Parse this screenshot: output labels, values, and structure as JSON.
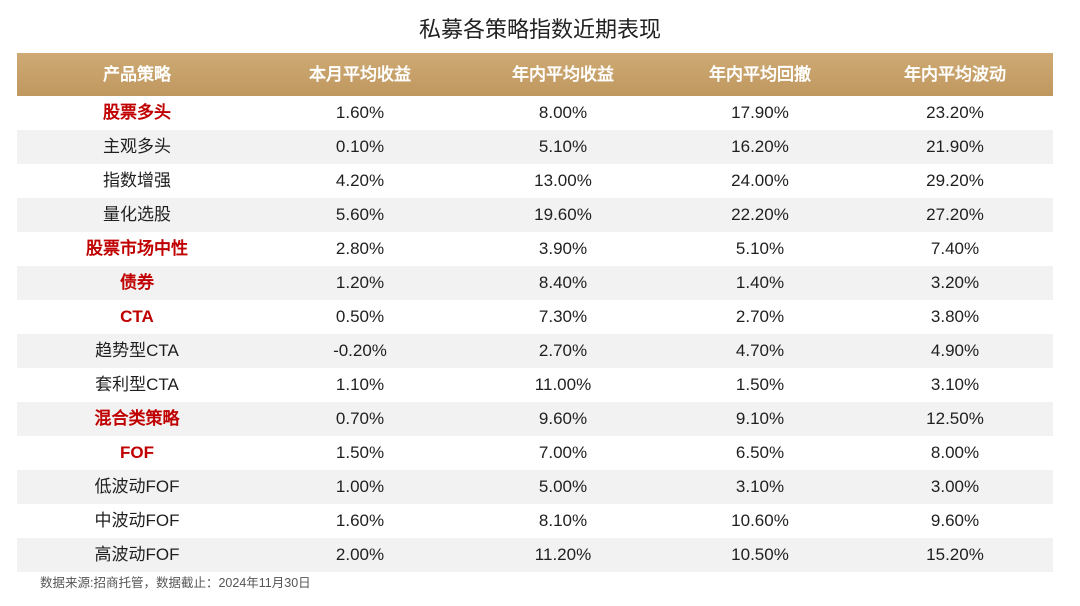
{
  "chart_data": {
    "type": "table",
    "title": "私募各策略指数近期表现",
    "columns": [
      "产品策略",
      "本月平均收益",
      "年内平均收益",
      "年内平均回撤",
      "年内平均波动"
    ],
    "rows": [
      {
        "label": "股票多头",
        "category": true,
        "values": [
          "1.60%",
          "8.00%",
          "17.90%",
          "23.20%"
        ]
      },
      {
        "label": "主观多头",
        "category": false,
        "values": [
          "0.10%",
          "5.10%",
          "16.20%",
          "21.90%"
        ]
      },
      {
        "label": "指数增强",
        "category": false,
        "values": [
          "4.20%",
          "13.00%",
          "24.00%",
          "29.20%"
        ]
      },
      {
        "label": "量化选股",
        "category": false,
        "values": [
          "5.60%",
          "19.60%",
          "22.20%",
          "27.20%"
        ]
      },
      {
        "label": "股票市场中性",
        "category": true,
        "values": [
          "2.80%",
          "3.90%",
          "5.10%",
          "7.40%"
        ]
      },
      {
        "label": "债券",
        "category": true,
        "values": [
          "1.20%",
          "8.40%",
          "1.40%",
          "3.20%"
        ]
      },
      {
        "label": "CTA",
        "category": true,
        "values": [
          "0.50%",
          "7.30%",
          "2.70%",
          "3.80%"
        ]
      },
      {
        "label": "趋势型CTA",
        "category": false,
        "values": [
          "-0.20%",
          "2.70%",
          "4.70%",
          "4.90%"
        ]
      },
      {
        "label": "套利型CTA",
        "category": false,
        "values": [
          "1.10%",
          "11.00%",
          "1.50%",
          "3.10%"
        ]
      },
      {
        "label": "混合类策略",
        "category": true,
        "values": [
          "0.70%",
          "9.60%",
          "9.10%",
          "12.50%"
        ]
      },
      {
        "label": "FOF",
        "category": true,
        "values": [
          "1.50%",
          "7.00%",
          "6.50%",
          "8.00%"
        ]
      },
      {
        "label": "低波动FOF",
        "category": false,
        "values": [
          "1.00%",
          "5.00%",
          "3.10%",
          "3.00%"
        ]
      },
      {
        "label": "中波动FOF",
        "category": false,
        "values": [
          "1.60%",
          "8.10%",
          "10.60%",
          "9.60%"
        ]
      },
      {
        "label": "高波动FOF",
        "category": false,
        "values": [
          "2.00%",
          "11.20%",
          "10.50%",
          "15.20%"
        ]
      }
    ]
  },
  "footnote": "数据来源:招商托管，数据截止：2024年11月30日",
  "colors": {
    "header_bg": "#C9A064",
    "header_text": "#FFFFFF",
    "category_text": "#C00000",
    "stripe": "#F2F2F2",
    "text": "#1F1F1F"
  }
}
